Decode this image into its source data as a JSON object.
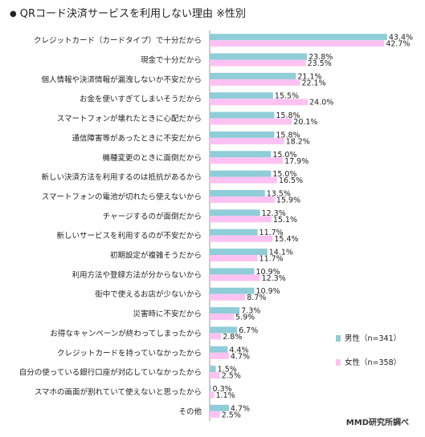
{
  "title": "QRコード決済サービスを利用しない理由 ※性別",
  "source": "MMD研究所調べ",
  "colors": {
    "male": "#8fcdd8",
    "female": "#fdc2f2",
    "axis": "#999999"
  },
  "chart_data": {
    "type": "bar",
    "orientation": "horizontal",
    "title": "QRコード決済サービスを利用しない理由 ※性別",
    "xlim": [
      0,
      45
    ],
    "categories": [
      "クレジットカード（カードタイプ）で十分だから",
      "現金で十分だから",
      "個人情報や決済情報が漏洩しないか不安だから",
      "お金を使いすぎてしまいそうだから",
      "スマートフォンが壊れたときに心配だから",
      "通信障害等があったときに不安だから",
      "機種変更のときに面倒だから",
      "新しい決済方法を利用するのは抵抗があるから",
      "スマートフォンの電池が切れたら使えないから",
      "チャージするのが面倒だから",
      "新しいサービスを利用するのが不安だから",
      "初期設定が複雑そうだから",
      "利用方法や登録方法が分からないから",
      "街中で使えるお店が少ないから",
      "災害時に不安だから",
      "お得なキャンペーンが終わってしまったから",
      "クレジットカードを持っていなかったから",
      "自分の使っている銀行口座が対応していなかったから",
      "スマホの画面が割れていて使えないと思ったから",
      "その他"
    ],
    "series": [
      {
        "name": "男性（n=341）",
        "values": [
          43.4,
          23.8,
          21.1,
          15.5,
          15.8,
          15.8,
          15.0,
          15.0,
          13.5,
          12.3,
          11.7,
          14.1,
          10.9,
          10.9,
          7.3,
          6.7,
          4.4,
          1.5,
          0.3,
          4.7
        ]
      },
      {
        "name": "女性（n=358）",
        "values": [
          42.7,
          23.5,
          22.1,
          24.0,
          20.1,
          18.2,
          17.9,
          16.5,
          15.9,
          15.1,
          15.4,
          11.7,
          12.3,
          8.7,
          5.9,
          2.8,
          4.7,
          2.5,
          1.1,
          2.5
        ]
      }
    ],
    "value_labels": [
      [
        "43.4%",
        "23.8%",
        "21.1%",
        "15.5%",
        "15.8%",
        "15.8%",
        "15.0%",
        "15.0%",
        "13.5%",
        "12.3%",
        "11.7%",
        "14.1%",
        "10.9%",
        "10.9%",
        "7.3%",
        "6.7%",
        "4.4%",
        "1.5%",
        "0.3%",
        "4.7%"
      ],
      [
        "42.7%",
        "23.5%",
        "22.1%",
        "24.0%",
        "20.1%",
        "18.2%",
        "17.9%",
        "16.5%",
        "15.9%",
        "15.1%",
        "15.4%",
        "11.7%",
        "12.3%",
        "8.7%",
        "5.9%",
        "2.8%",
        "4.7%",
        "2.5%",
        "1.1%",
        "2.5%"
      ]
    ],
    "legend_placement": "right",
    "grid": false
  }
}
